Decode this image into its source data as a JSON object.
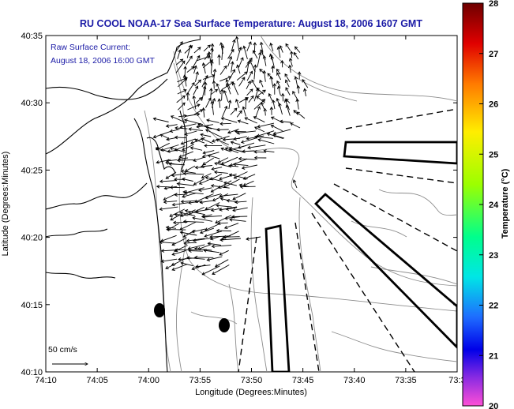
{
  "title": "RU COOL  NOAA-17  Sea Surface Temperature:  August 18, 2006 1607 GMT",
  "current_label_line1": "Raw Surface Current:",
  "current_label_line2": "August 18, 2006 16:00 GMT",
  "scale_label": "50 cm/s",
  "xlabel": "Longitude (Degrees:Minutes)",
  "ylabel": "Latitude (Degrees:Minutes)",
  "colorbar_label": "Temperature (°C)",
  "x_ticks": [
    "74:10",
    "74:05",
    "74:00",
    "73:55",
    "73:50",
    "73:45",
    "73:40",
    "73:35",
    "73:3"
  ],
  "y_ticks": [
    "40:35",
    "40:30",
    "40:25",
    "40:20",
    "40:15",
    "40:10"
  ],
  "colorbar_ticks": [
    "28",
    "27",
    "26",
    "25",
    "24",
    "23",
    "22",
    "21",
    "20"
  ],
  "colors": {
    "title": "#1a1aa6",
    "axis": "#000000",
    "coast": "#000000",
    "bathymetry": "#888888"
  },
  "colorbar_stops": [
    "#8b0000",
    "#ff0000",
    "#ff8c00",
    "#ffff00",
    "#7fff00",
    "#00ff7f",
    "#00ffff",
    "#1e90ff",
    "#0000ff",
    "#8a2be2",
    "#ff00ff"
  ]
}
